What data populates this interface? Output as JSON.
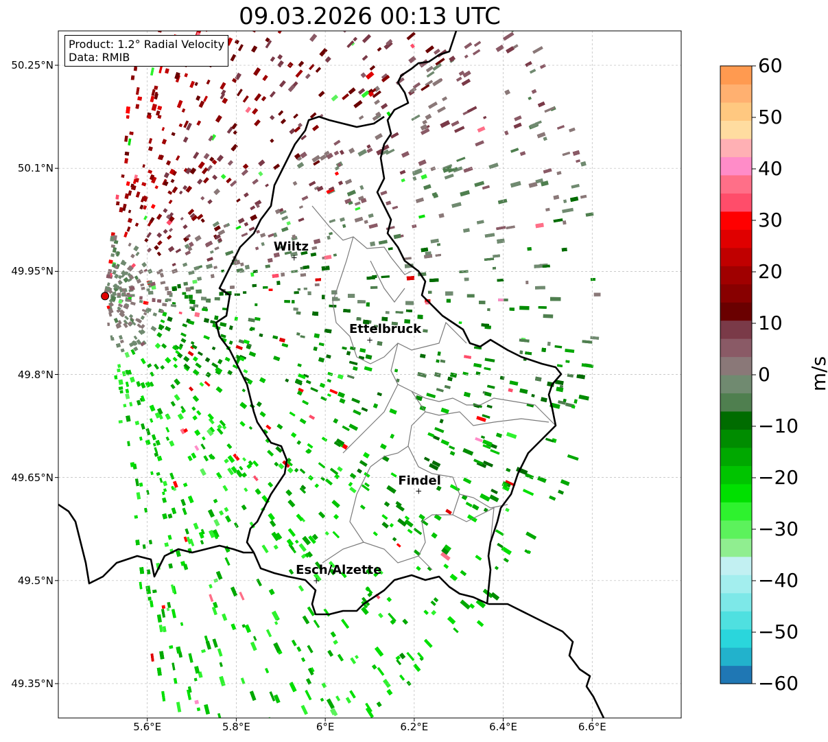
{
  "title": "09.03.2026 00:13 UTC",
  "info": {
    "product": "Product: 1.2° Radial Velocity",
    "source": "Data: RMIB"
  },
  "axes": {
    "lat_ticks": [
      "50.25°N",
      "50.1°N",
      "49.95°N",
      "49.8°N",
      "49.65°N",
      "49.5°N",
      "49.35°N"
    ],
    "lon_ticks": [
      "5.6°E",
      "5.8°E",
      "6°E",
      "6.2°E",
      "6.4°E",
      "6.6°E"
    ],
    "lat_range": [
      49.3,
      50.3
    ],
    "lon_range": [
      5.4,
      6.8
    ]
  },
  "cities": [
    {
      "name": "Wiltz",
      "lon": 5.93,
      "lat": 49.97
    },
    {
      "name": "Ettelbruck",
      "lon": 6.1,
      "lat": 49.85
    },
    {
      "name": "Findel",
      "lon": 6.21,
      "lat": 49.63
    },
    {
      "name": "Esch/Alzette",
      "lon": 5.98,
      "lat": 49.5
    }
  ],
  "radar_site": {
    "lon": 5.505,
    "lat": 49.914
  },
  "colorbar": {
    "label": "m/s",
    "min": -60,
    "max": 60,
    "ticks": [
      "60",
      "50",
      "40",
      "30",
      "20",
      "10",
      "0",
      "−10",
      "−20",
      "−30",
      "−40",
      "−50",
      "−60"
    ],
    "colors": [
      "#1f77b4",
      "#22b2cc",
      "#2ad6dc",
      "#4fe0e0",
      "#7de8e8",
      "#a3eeee",
      "#c2f0f2",
      "#90ee90",
      "#5cf25c",
      "#2ef22e",
      "#00e000",
      "#00c400",
      "#00a800",
      "#008c00",
      "#006c00",
      "#4f7f4f",
      "#708a70",
      "#8a7878",
      "#8a5a66",
      "#7a3a48",
      "#6a0000",
      "#880000",
      "#a00000",
      "#c00000",
      "#e00000",
      "#ff0000",
      "#ff4d6a",
      "#ff6f88",
      "#ff8cc8",
      "#ffb0b4",
      "#ffdca0",
      "#ffc880",
      "#ffb070",
      "#ff9a50"
    ]
  }
}
